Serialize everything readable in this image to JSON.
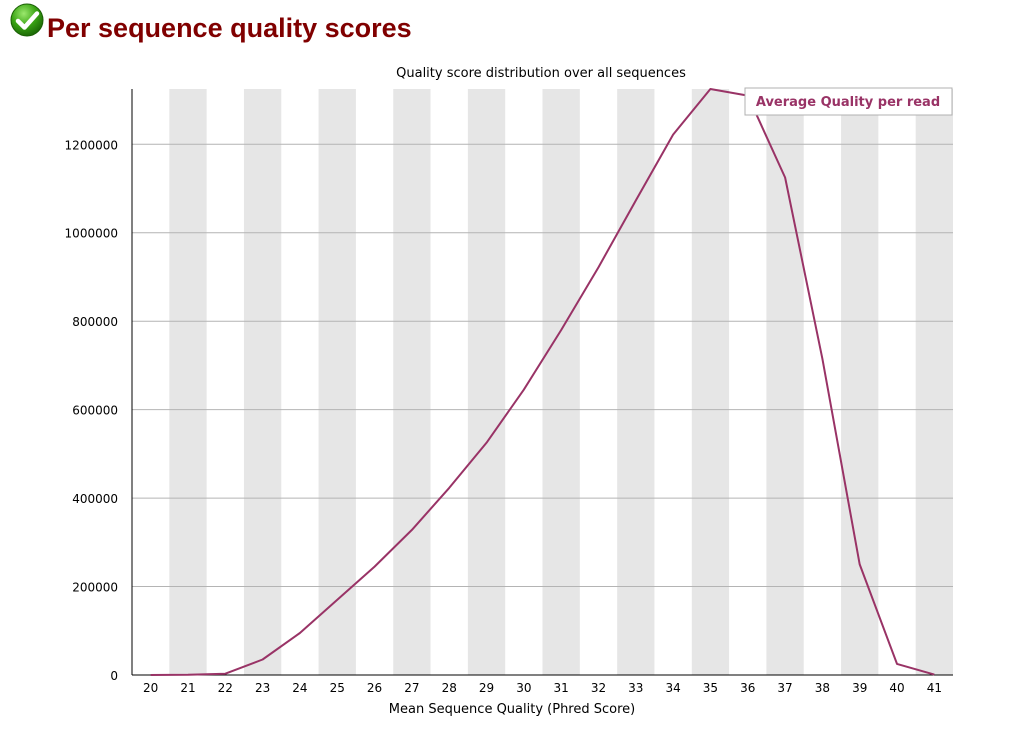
{
  "header": {
    "title": "Per sequence quality scores",
    "status_icon": "green-check-icon"
  },
  "colors": {
    "title": "#800000",
    "series": "#993366",
    "band": "#e6e6e6",
    "grid": "#b4b4b4"
  },
  "chart_data": {
    "type": "line",
    "title": "Quality score distribution over all sequences",
    "xlabel": "Mean Sequence Quality (Phred Score)",
    "ylabel": "",
    "x": [
      20,
      21,
      22,
      23,
      24,
      25,
      26,
      27,
      28,
      29,
      30,
      31,
      32,
      33,
      34,
      35,
      36,
      37,
      38,
      39,
      40,
      41
    ],
    "yticks": [
      0,
      200000,
      400000,
      600000,
      800000,
      1000000,
      1200000
    ],
    "ylim": [
      0,
      1325000
    ],
    "grid": true,
    "legend_position": "top-right",
    "series": [
      {
        "name": "Average Quality per read",
        "values": [
          0,
          500,
          3000,
          35000,
          95000,
          170000,
          245000,
          328000,
          423000,
          525000,
          645000,
          780000,
          922000,
          1073000,
          1222000,
          1325000,
          1310000,
          1125000,
          715000,
          250000,
          25000,
          1000
        ]
      }
    ]
  }
}
